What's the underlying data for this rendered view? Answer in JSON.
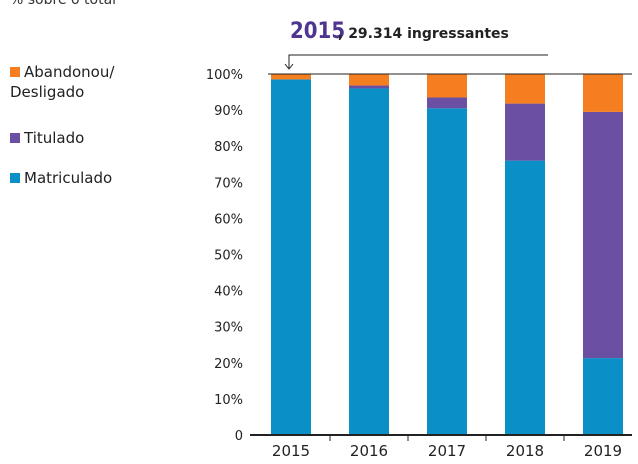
{
  "chart_data": {
    "type": "stacked_bar",
    "subtitle": "% sobre o total",
    "annotation": {
      "year": "2015",
      "text": ", 29.314 ingressantes"
    },
    "categories": [
      "2015",
      "2016",
      "2017",
      "2018",
      "2019"
    ],
    "series": [
      {
        "name": "Matriculado",
        "color": "#0a8fc7",
        "values": [
          98.5,
          96,
          90.5,
          76,
          21.3
        ]
      },
      {
        "name": "Titulado",
        "color": "#6a4fa3",
        "values": [
          0,
          0.8,
          3,
          15.8,
          68.2
        ]
      },
      {
        "name": "Abandonou/ Desligado",
        "color": "#f47e20",
        "values": [
          1.5,
          3.2,
          6.5,
          8.2,
          10.5
        ]
      }
    ],
    "ylim": [
      0,
      100
    ],
    "yticks": [
      0,
      {
        "value": 10,
        "label": "10%"
      },
      {
        "value": 20,
        "label": "20%"
      },
      {
        "value": 30,
        "label": "30%"
      },
      {
        "value": 40,
        "label": "40%"
      },
      {
        "value": 50,
        "label": "50%"
      },
      {
        "value": 60,
        "label": "60%"
      },
      {
        "value": 70,
        "label": "70%"
      },
      {
        "value": 80,
        "label": "80%"
      },
      {
        "value": 90,
        "label": "90%"
      },
      {
        "value": 100,
        "label": "100%"
      }
    ]
  }
}
